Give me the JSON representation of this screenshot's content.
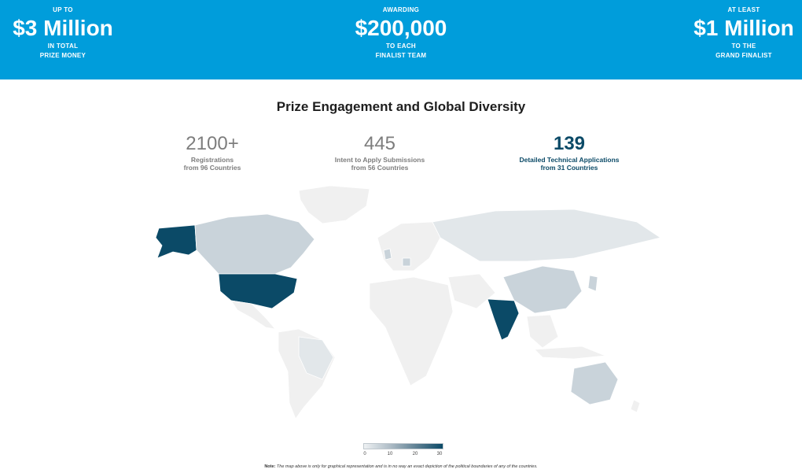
{
  "banner": {
    "left": {
      "top": "UP TO",
      "big": "$3 Million",
      "line1": "IN TOTAL",
      "line2": "PRIZE MONEY"
    },
    "center": {
      "top": "AWARDING",
      "big": "$200,000",
      "line1": "TO EACH",
      "line2": "FINALIST TEAM"
    },
    "right": {
      "top": "AT LEAST",
      "big": "$1 Million",
      "line1": "TO THE",
      "line2": "GRAND FINALIST"
    }
  },
  "section_title": "Prize Engagement and Global Diversity",
  "metrics": [
    {
      "value": "2100+",
      "line1": "Registrations",
      "line2": "from 96 Countries"
    },
    {
      "value": "445",
      "line1": "Intent to Apply Submissions",
      "line2": "from 56 Countries"
    },
    {
      "value": "139",
      "line1": "Detailed Technical Applications",
      "line2": "from 31 Countries"
    }
  ],
  "legend": {
    "ticks": [
      "0",
      "10",
      "20",
      "30"
    ]
  },
  "note": {
    "label": "Note:",
    "text": "The map above is only for graphical representation and is in no way an exact depiction of the political boundaries of any of the countries."
  },
  "colors": {
    "banner": "#009ddb",
    "dark": "#0b4a67",
    "mid": "#c9d3da",
    "light": "#f0f0f0"
  }
}
